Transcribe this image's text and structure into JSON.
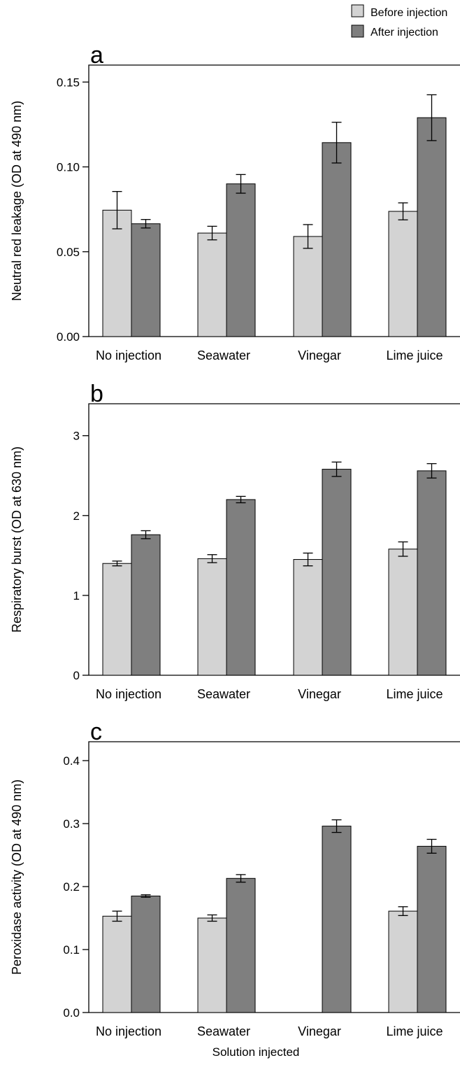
{
  "chart_data": [
    {
      "type": "bar",
      "panel_label": "a",
      "ylabel": "Neutral red leakage (OD at 490 nm)",
      "xlabel": "",
      "ylim": [
        0,
        0.16
      ],
      "yticks": [
        "0.00",
        "0.05",
        "0.10",
        "0.15"
      ],
      "yticks_values": [
        0,
        0.05,
        0.1,
        0.15
      ],
      "categories": [
        "No injection",
        "Seawater",
        "Vinegar",
        "Lime juice"
      ],
      "series": [
        {
          "name": "Before injection",
          "values": [
            0.0745,
            0.061,
            0.059,
            0.0738
          ],
          "errors": [
            0.011,
            0.004,
            0.007,
            0.005
          ]
        },
        {
          "name": "After injection",
          "values": [
            0.0665,
            0.09,
            0.1143,
            0.129
          ],
          "errors": [
            0.0025,
            0.0055,
            0.012,
            0.0135
          ]
        }
      ]
    },
    {
      "type": "bar",
      "panel_label": "b",
      "ylabel": "Respiratory burst (OD at 630 nm)",
      "xlabel": "",
      "ylim": [
        0,
        3.4
      ],
      "yticks": [
        "0",
        "1",
        "2",
        "3"
      ],
      "yticks_values": [
        0,
        1,
        2,
        3
      ],
      "categories": [
        "No injection",
        "Seawater",
        "Vinegar",
        "Lime juice"
      ],
      "series": [
        {
          "name": "Before injection",
          "values": [
            1.4,
            1.46,
            1.45,
            1.58
          ],
          "errors": [
            0.03,
            0.05,
            0.08,
            0.09
          ]
        },
        {
          "name": "After injection",
          "values": [
            1.76,
            2.2,
            2.58,
            2.56
          ],
          "errors": [
            0.05,
            0.04,
            0.09,
            0.09
          ]
        }
      ]
    },
    {
      "type": "bar",
      "panel_label": "c",
      "ylabel": "Peroxidase activity (OD at 490 nm)",
      "xlabel": "Solution injected",
      "ylim": [
        0,
        0.43
      ],
      "yticks": [
        "0.0",
        "0.1",
        "0.2",
        "0.3",
        "0.4"
      ],
      "yticks_values": [
        0,
        0.1,
        0.2,
        0.3,
        0.4
      ],
      "categories": [
        "No injection",
        "Seawater",
        "Vinegar",
        "Lime juice"
      ],
      "series": [
        {
          "name": "Before injection",
          "values": [
            0.153,
            0.15,
            null,
            0.161
          ],
          "errors": [
            0.008,
            0.005,
            null,
            0.007
          ]
        },
        {
          "name": "After injection",
          "values": [
            0.185,
            0.213,
            0.296,
            0.264
          ],
          "errors": [
            0.002,
            0.006,
            0.01,
            0.011
          ]
        }
      ]
    }
  ],
  "legend": {
    "items": [
      {
        "label": "Before injection",
        "color": "#d3d3d3"
      },
      {
        "label": "After injection",
        "color": "#7f7f7f"
      }
    ]
  },
  "colors": {
    "before": "#d3d3d3",
    "after": "#7f7f7f",
    "axis": "#000000"
  },
  "x_axis_title": "Solution injected"
}
